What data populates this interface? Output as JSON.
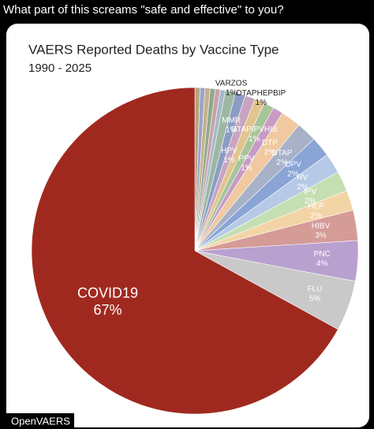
{
  "post_text": "What part of this screams \"safe and effective\" to you?",
  "watermark": "OpenVAERS",
  "chart_data": {
    "type": "pie",
    "title": "VAERS Reported Deaths by Vaccine Type",
    "subtitle": "1990 - 2025",
    "categories": [
      null,
      null,
      null,
      null,
      null,
      null,
      "VARZOS",
      "MMR",
      "HPV",
      "DTAPHEPBIP",
      "DTAPIPVHIB",
      "PPV",
      "DTP",
      "DTAP",
      "OPV",
      "RV",
      "IPV",
      "HEP",
      "HIBV",
      "PNC",
      "FLU",
      "COVID19"
    ],
    "values": [
      0.5,
      0.5,
      0.5,
      0.5,
      0.5,
      0.5,
      1,
      1,
      1,
      1,
      1,
      1,
      2,
      2,
      2,
      2,
      2,
      2,
      3,
      4,
      5,
      67
    ],
    "value_labels": [
      null,
      null,
      null,
      null,
      null,
      null,
      "1%",
      "1%",
      "1%",
      "1%",
      "1%",
      "1%",
      "2%",
      "2%",
      "2%",
      "2%",
      "2%",
      "2%",
      "3%",
      "4%",
      "5%",
      "67%"
    ],
    "colors": [
      "#b7a27a",
      "#9aa6c9",
      "#c7b08a",
      "#8fa98c",
      "#c6a3a8",
      "#a8b7c9",
      "#9db7a3",
      "#8c9dc4",
      "#c9a4c1",
      "#e2c48d",
      "#a7c59a",
      "#c79bc6",
      "#f0c9a0",
      "#a7b2c8",
      "#8aa4d6",
      "#b6c9e6",
      "#c5dfb2",
      "#f3d4a6",
      "#d59b97",
      "#b9a1cf",
      "#c9c9c9",
      "#a0291f"
    ]
  }
}
